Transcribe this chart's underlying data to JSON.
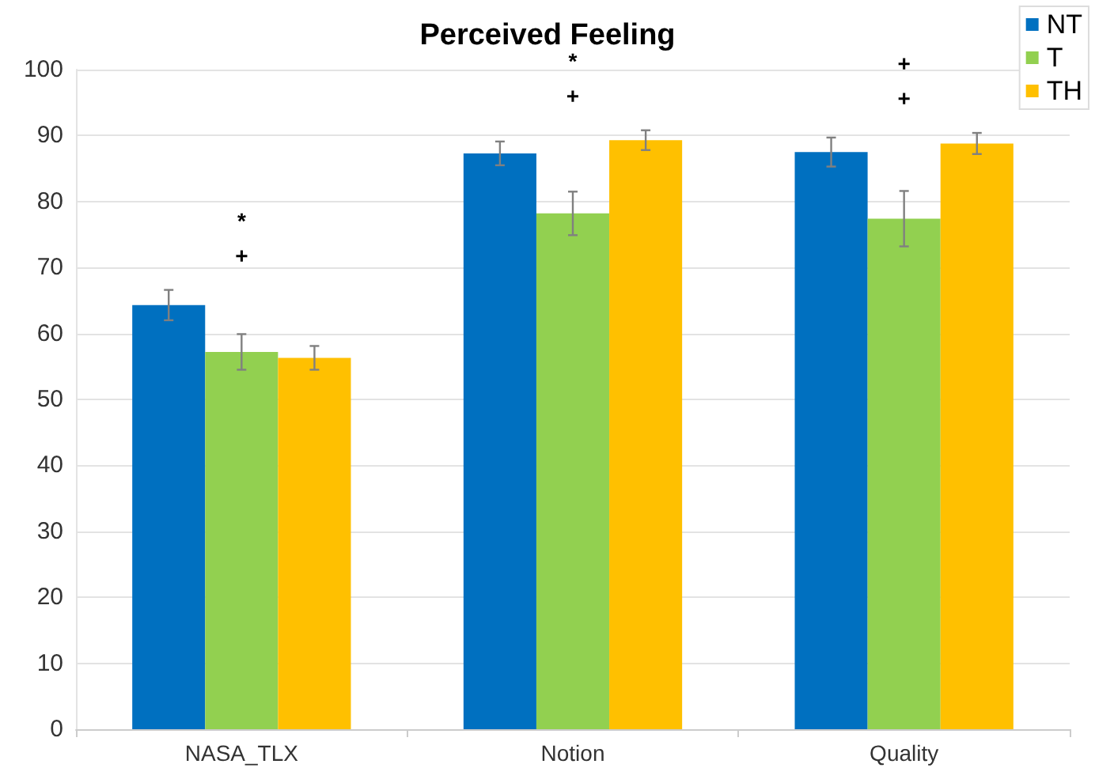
{
  "chart_data": {
    "type": "bar",
    "title": "Perceived Feeling",
    "categories": [
      "NASA_TLX",
      "Notion",
      "Quality"
    ],
    "series": [
      {
        "name": "NT",
        "color": "#0070c0",
        "values": [
          64.3,
          87.3,
          87.5
        ],
        "errors": [
          2.3,
          1.8,
          2.2
        ]
      },
      {
        "name": "T",
        "color": "#92d050",
        "values": [
          57.2,
          78.2,
          77.4
        ],
        "errors": [
          2.7,
          3.3,
          4.2
        ]
      },
      {
        "name": "TH",
        "color": "#ffc000",
        "values": [
          56.3,
          89.3,
          88.8
        ],
        "errors": [
          1.8,
          1.5,
          1.6
        ]
      }
    ],
    "ylim": [
      0,
      100
    ],
    "yticks": [
      0,
      10,
      20,
      30,
      40,
      50,
      60,
      70,
      80,
      90,
      100
    ],
    "grid": "y",
    "legend": "top right",
    "annotations": [
      "+",
      "*",
      "+",
      "*",
      "+",
      "+"
    ]
  }
}
